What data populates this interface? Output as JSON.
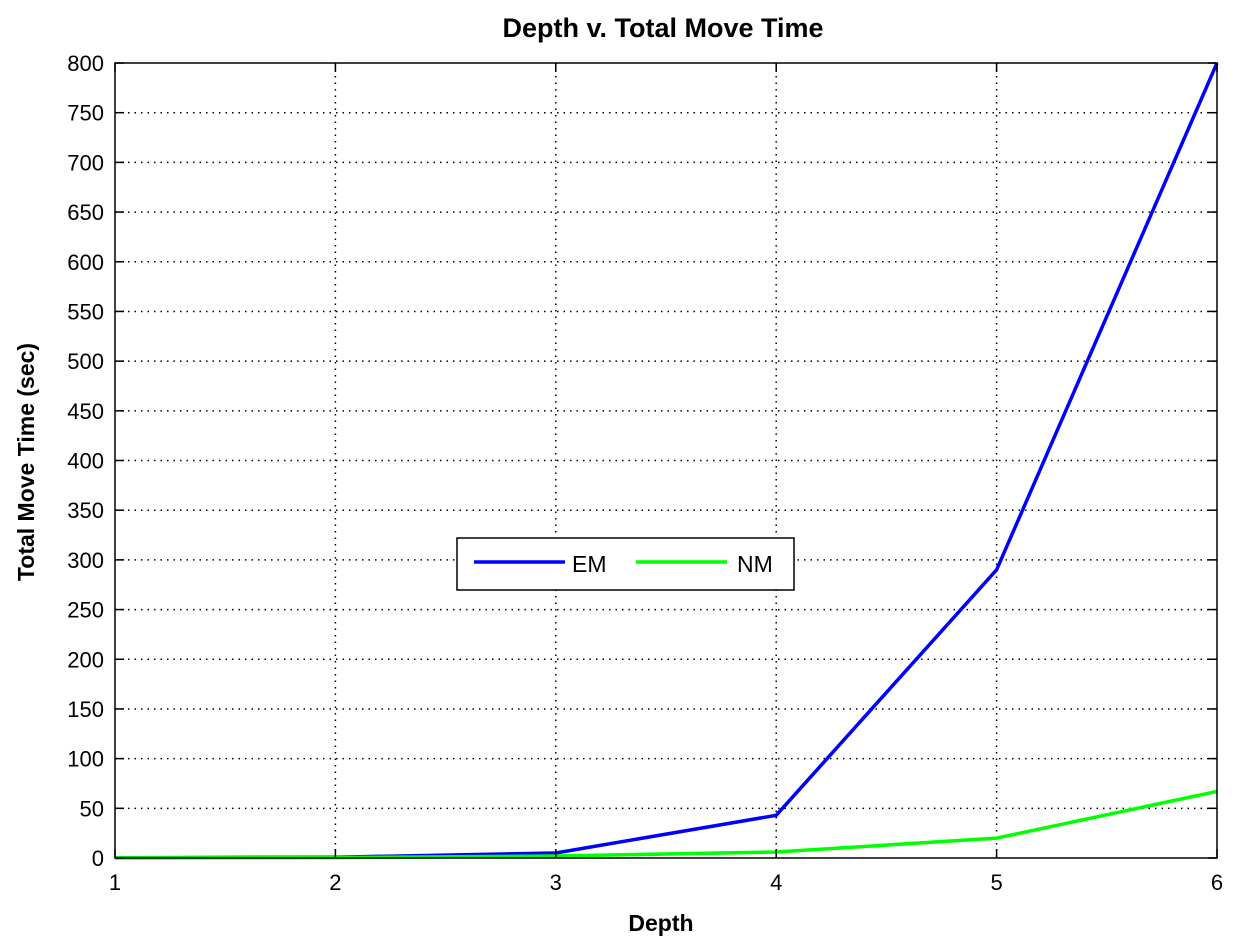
{
  "chart_data": {
    "type": "line",
    "title": "Depth v. Total Move Time",
    "xlabel": "Depth",
    "ylabel": "Total Move Time (sec)",
    "xlim": [
      1,
      6
    ],
    "ylim": [
      0,
      800
    ],
    "xticks": [
      1,
      2,
      3,
      4,
      5,
      6
    ],
    "yticks": [
      0,
      50,
      100,
      150,
      200,
      250,
      300,
      350,
      400,
      450,
      500,
      550,
      600,
      650,
      700,
      750,
      800
    ],
    "grid": true,
    "legend_placement": "center",
    "series": [
      {
        "name": "EM",
        "color": "#0000ff",
        "x": [
          1,
          2,
          3,
          4,
          5,
          6
        ],
        "y": [
          0.2,
          0.8,
          5,
          43,
          290,
          800
        ]
      },
      {
        "name": "NM",
        "color": "#00ff00",
        "x": [
          1,
          2,
          3,
          4,
          5,
          6
        ],
        "y": [
          0.1,
          0.4,
          2,
          6,
          20,
          67
        ]
      }
    ]
  }
}
